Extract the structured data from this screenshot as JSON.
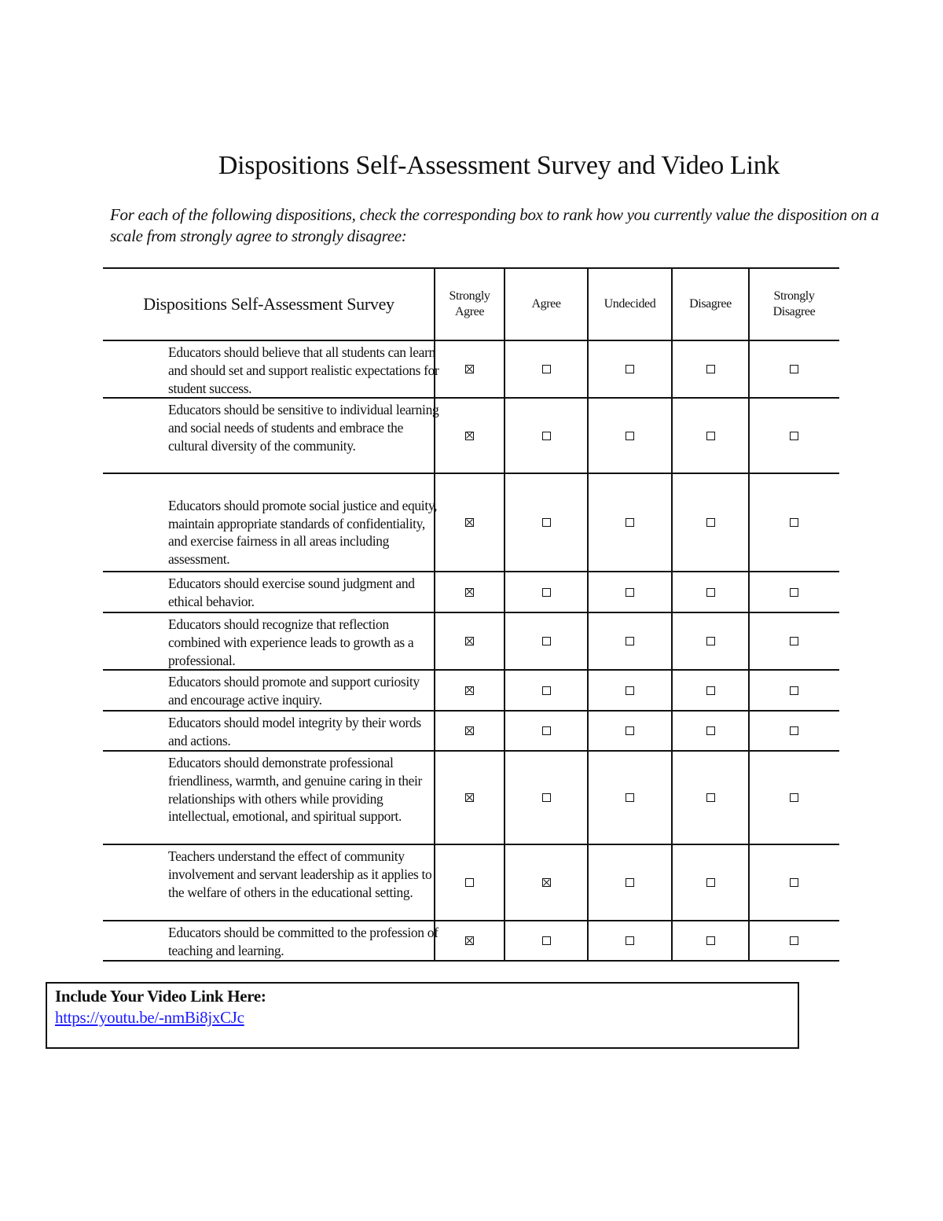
{
  "title": "Dispositions Self-Assessment Survey and Video Link",
  "instructions": "For each of the following dispositions, check the corresponding box to rank how you currently value the disposition on a scale from strongly agree to strongly disagree:",
  "table": {
    "header": "Dispositions Self-Assessment Survey",
    "columns": [
      "Strongly Agree",
      "Agree",
      "Undecided",
      "Disagree",
      "Strongly Disagree"
    ],
    "rows": [
      {
        "statement": "Educators should believe that all students can learn and should set and support realistic expectations for student success.",
        "selected": "Strongly Agree"
      },
      {
        "statement": "Educators should be sensitive to individual learning and social needs of students and embrace the cultural diversity of the community.",
        "selected": "Strongly Agree"
      },
      {
        "statement": "Educators should promote social justice and equity, maintain appropriate standards of confidentiality, and exercise fairness in all areas including assessment.",
        "selected": "Strongly Agree"
      },
      {
        "statement": "Educators should exercise sound judgment and ethical behavior.",
        "selected": "Strongly Agree"
      },
      {
        "statement": "Educators should recognize that reflection combined with experience leads to growth as a professional.",
        "selected": "Strongly Agree"
      },
      {
        "statement": "Educators should promote and support curiosity and encourage active inquiry.",
        "selected": "Strongly Agree"
      },
      {
        "statement": "Educators should model integrity by their words and actions.",
        "selected": "Strongly Agree"
      },
      {
        "statement": "Educators should demonstrate professional friendliness, warmth, and genuine caring in their relationships with others while providing intellectual, emotional, and spiritual support.",
        "selected": "Strongly Agree"
      },
      {
        "statement": "Teachers understand the effect of community involvement and servant leadership as it applies to the welfare of others in the educational setting.",
        "selected": "Agree"
      },
      {
        "statement": "Educators should be committed to the profession of teaching and learning.",
        "selected": "Strongly Agree"
      }
    ]
  },
  "video": {
    "label": "Include Your Video Link Here:",
    "link": "https://youtu.be/-nmBi8jxCJc"
  }
}
